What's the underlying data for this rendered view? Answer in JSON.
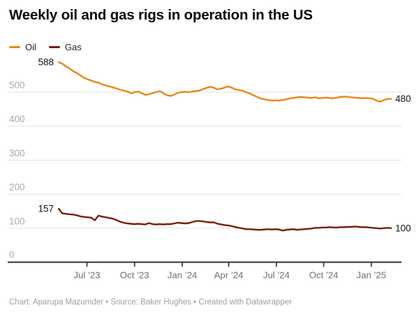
{
  "title": "Weekly oil and gas rigs in operation in the US",
  "footer": "Chart: Aparupa Mazumder • Source: Baker Hughes • Created with Datawrapper",
  "colors": {
    "oil": "#E8871A",
    "gas": "#7A1E07",
    "grid": "#e2e2e2",
    "axis": "#2f2f2f",
    "y_label": "#aaaaaa",
    "x_label": "#6f6f6f",
    "data_label": "#111111"
  },
  "chart_data": {
    "type": "line",
    "title": "Weekly oil and gas rigs in operation in the US",
    "xlabel": "",
    "ylabel": "",
    "grid": true,
    "legend_position": "top-left",
    "ylim": [
      0,
      610
    ],
    "y_ticks": [
      0,
      100,
      200,
      300,
      400,
      500
    ],
    "x_tick_labels": [
      "Jul ’23",
      "Oct ’23",
      "Jan ’24",
      "Apr ’24",
      "Jul ’24",
      "Oct ’24",
      "Jan ’25"
    ],
    "x_range_note": "weekly data from May 2023 to Feb 2025",
    "series": [
      {
        "name": "Oil",
        "color": "#E8871A",
        "start_label": "588",
        "end_label": "480",
        "values": [
          588,
          584,
          576,
          570,
          562,
          556,
          550,
          542,
          538,
          534,
          530,
          528,
          523,
          520,
          517,
          514,
          511,
          507,
          505,
          502,
          497,
          500,
          502,
          497,
          492,
          494,
          497,
          500,
          503,
          497,
          491,
          489,
          493,
          498,
          500,
          501,
          500,
          502,
          503,
          505,
          509,
          513,
          516,
          513,
          508,
          510,
          514,
          517,
          513,
          508,
          506,
          504,
          499,
          496,
          490,
          486,
          481,
          479,
          477,
          475,
          476,
          475,
          477,
          479,
          482,
          483,
          485,
          486,
          485,
          484,
          483,
          485,
          482,
          483,
          484,
          483,
          482,
          484,
          486,
          487,
          486,
          485,
          484,
          483,
          482,
          483,
          482,
          481,
          475,
          472,
          477,
          480,
          480
        ]
      },
      {
        "name": "Gas",
        "color": "#7A1E07",
        "start_label": "157",
        "end_label": "100",
        "values": [
          157,
          144,
          142,
          141,
          140,
          138,
          135,
          133,
          132,
          131,
          123,
          137,
          134,
          132,
          130,
          128,
          124,
          119,
          116,
          114,
          113,
          112,
          113,
          112,
          111,
          115,
          112,
          111,
          112,
          111,
          112,
          112,
          114,
          116,
          115,
          114,
          115,
          118,
          121,
          121,
          120,
          118,
          117,
          117,
          113,
          111,
          109,
          108,
          106,
          103,
          101,
          99,
          97,
          97,
          96,
          95,
          95,
          96,
          97,
          96,
          97,
          96,
          93,
          95,
          96,
          97,
          95,
          96,
          97,
          98,
          99,
          101,
          101,
          102,
          102,
          103,
          102,
          102,
          103,
          103,
          104,
          104,
          105,
          104,
          103,
          103,
          102,
          101,
          100,
          99,
          100,
          101,
          100
        ]
      }
    ]
  }
}
